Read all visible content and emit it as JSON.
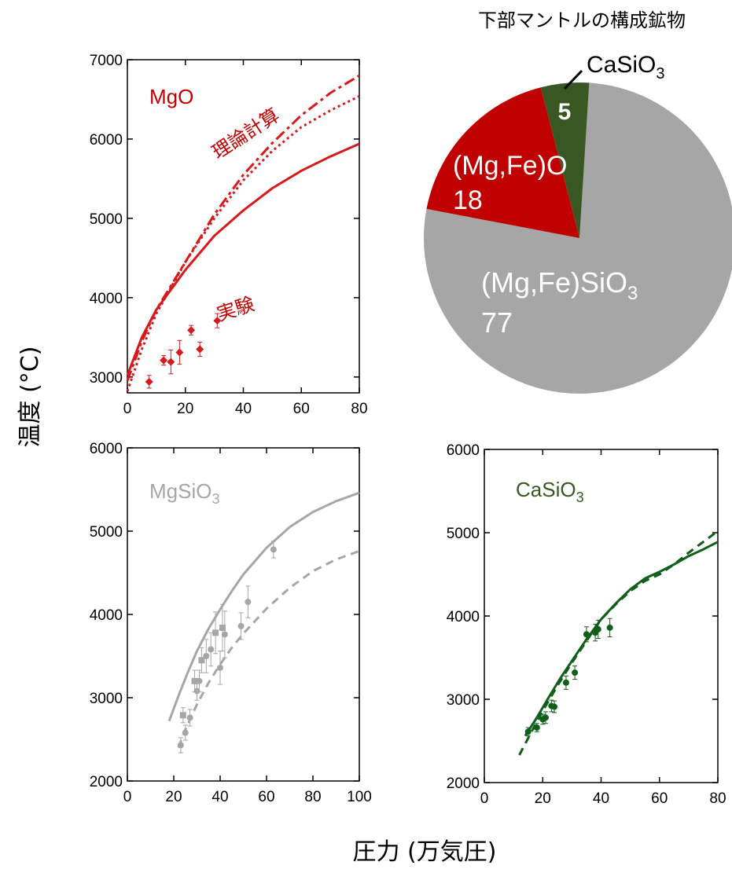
{
  "figure": {
    "ylabel": "温度 (°C)",
    "xlabel": "圧力 (万気圧)"
  },
  "chart_data": [
    {
      "type": "line",
      "title": "MgO",
      "title_color": "#c00000",
      "color": "#d7191c",
      "xlim": [
        0,
        80
      ],
      "ylim": [
        2800,
        7000
      ],
      "xticks": [
        0,
        20,
        40,
        60,
        80
      ],
      "yticks": [
        3000,
        4000,
        5000,
        6000,
        7000
      ],
      "annotations": [
        {
          "text": "理論計算",
          "x": 42,
          "y": 6000,
          "angle": -33,
          "color": "#c00000"
        },
        {
          "text": "実験",
          "x": 38,
          "y": 3780,
          "angle": -18,
          "color": "#c00000"
        }
      ],
      "series": [
        {
          "style": "solid",
          "x": [
            0,
            5,
            10,
            20,
            30,
            40,
            50,
            60,
            70,
            80
          ],
          "y": [
            3020,
            3500,
            3850,
            4350,
            4780,
            5100,
            5380,
            5600,
            5780,
            5940
          ]
        },
        {
          "style": "dotted",
          "x": [
            0,
            5,
            10,
            20,
            30,
            40,
            50,
            60,
            70,
            80
          ],
          "y": [
            2820,
            3350,
            3800,
            4450,
            5000,
            5480,
            5850,
            6150,
            6360,
            6540
          ]
        },
        {
          "style": "dashdot",
          "x": [
            0,
            5,
            10,
            20,
            30,
            40,
            50,
            60,
            70,
            80
          ],
          "y": [
            2950,
            3450,
            3850,
            4450,
            5050,
            5550,
            5950,
            6300,
            6580,
            6800
          ]
        }
      ],
      "points": [
        {
          "x": 7.5,
          "y": 2940,
          "err": 80
        },
        {
          "x": 12.5,
          "y": 3210,
          "err": 60
        },
        {
          "x": 15,
          "y": 3190,
          "err": 150
        },
        {
          "x": 18,
          "y": 3310,
          "err": 150
        },
        {
          "x": 22,
          "y": 3590,
          "err": 60
        },
        {
          "x": 25,
          "y": 3350,
          "err": 90
        },
        {
          "x": 31,
          "y": 3710,
          "err": 90
        }
      ]
    },
    {
      "type": "pie",
      "title": "下部マントルの構成鉱物",
      "slices": [
        {
          "label": "(Mg,Fe)SiO3",
          "value": 77,
          "color": "#a6a6a6"
        },
        {
          "label": "(Mg,Fe)O",
          "value": 18,
          "color": "#c00000"
        },
        {
          "label": "CaSiO3",
          "value": 5,
          "color": "#385723"
        }
      ]
    },
    {
      "type": "scatter",
      "title": "MgSiO3",
      "title_color": "#a6a6a6",
      "color": "#a6a6a6",
      "xlim": [
        0,
        100
      ],
      "ylim": [
        2000,
        6000
      ],
      "xticks": [
        0,
        20,
        40,
        60,
        80,
        100
      ],
      "yticks": [
        2000,
        3000,
        4000,
        5000,
        6000
      ],
      "series": [
        {
          "style": "solid",
          "x": [
            18,
            22,
            26,
            30,
            35,
            40,
            45,
            50,
            60,
            70,
            80,
            90,
            100
          ],
          "y": [
            2720,
            3020,
            3300,
            3560,
            3830,
            4060,
            4280,
            4480,
            4800,
            5050,
            5230,
            5360,
            5460
          ]
        },
        {
          "style": "dashed",
          "x": [
            22,
            25,
            30,
            35,
            40,
            45,
            50,
            60,
            70,
            80,
            90,
            100
          ],
          "y": [
            2400,
            2620,
            2920,
            3180,
            3400,
            3600,
            3770,
            4070,
            4320,
            4520,
            4660,
            4760
          ]
        }
      ],
      "points": [
        {
          "x": 23,
          "y": 2430,
          "err": 90,
          "marker": "circle"
        },
        {
          "x": 24,
          "y": 2790,
          "err": 90,
          "marker": "square"
        },
        {
          "x": 25,
          "y": 2580,
          "err": 90,
          "marker": "circle"
        },
        {
          "x": 27,
          "y": 2760,
          "err": 100,
          "marker": "circle"
        },
        {
          "x": 29,
          "y": 3200,
          "err": 130,
          "marker": "square"
        },
        {
          "x": 30,
          "y": 3080,
          "err": 110,
          "marker": "circle"
        },
        {
          "x": 31,
          "y": 3200,
          "err": 130,
          "marker": "circle"
        },
        {
          "x": 32,
          "y": 3450,
          "err": 150,
          "marker": "square"
        },
        {
          "x": 34,
          "y": 3500,
          "err": 200,
          "marker": "circle"
        },
        {
          "x": 36,
          "y": 3580,
          "err": 200,
          "marker": "circle"
        },
        {
          "x": 38,
          "y": 3780,
          "err": 250,
          "marker": "square"
        },
        {
          "x": 40,
          "y": 3360,
          "err": 200,
          "marker": "circle"
        },
        {
          "x": 41,
          "y": 3840,
          "err": 280,
          "marker": "square"
        },
        {
          "x": 42,
          "y": 3760,
          "err": 280,
          "marker": "circle"
        },
        {
          "x": 49,
          "y": 3860,
          "err": 160,
          "marker": "circle"
        },
        {
          "x": 52,
          "y": 4150,
          "err": 190,
          "marker": "circle"
        },
        {
          "x": 63,
          "y": 4780,
          "err": 100,
          "marker": "circle"
        }
      ]
    },
    {
      "type": "scatter",
      "title": "CaSiO3",
      "title_color": "#385723",
      "color": "#0f5f1a",
      "xlim": [
        0,
        80
      ],
      "ylim": [
        2000,
        6000
      ],
      "xticks": [
        0,
        20,
        40,
        60,
        80
      ],
      "yticks": [
        2000,
        3000,
        4000,
        5000,
        6000
      ],
      "series": [
        {
          "style": "solid",
          "x": [
            14,
            18,
            22,
            26,
            30,
            35,
            40,
            45,
            50,
            55,
            60,
            65,
            70,
            75,
            80
          ],
          "y": [
            2560,
            2780,
            3020,
            3250,
            3460,
            3720,
            3960,
            4150,
            4320,
            4450,
            4530,
            4620,
            4720,
            4800,
            4890
          ]
        },
        {
          "style": "dashed",
          "x": [
            12,
            16,
            20,
            25,
            30,
            35,
            40,
            45,
            50,
            55,
            60,
            65,
            70,
            75,
            80
          ],
          "y": [
            2330,
            2600,
            2860,
            3160,
            3440,
            3700,
            3960,
            4140,
            4300,
            4420,
            4500,
            4620,
            4760,
            4890,
            5020
          ]
        }
      ],
      "points": [
        {
          "x": 15,
          "y": 2610,
          "err": 50
        },
        {
          "x": 18,
          "y": 2660,
          "err": 50
        },
        {
          "x": 20,
          "y": 2760,
          "err": 60
        },
        {
          "x": 21,
          "y": 2780,
          "err": 70
        },
        {
          "x": 23,
          "y": 2920,
          "err": 70
        },
        {
          "x": 24,
          "y": 2910,
          "err": 70
        },
        {
          "x": 28,
          "y": 3200,
          "err": 80
        },
        {
          "x": 31,
          "y": 3320,
          "err": 80
        },
        {
          "x": 35,
          "y": 3780,
          "err": 90
        },
        {
          "x": 38,
          "y": 3800,
          "err": 100
        },
        {
          "x": 39,
          "y": 3840,
          "err": 110
        },
        {
          "x": 43,
          "y": 3860,
          "err": 110
        }
      ]
    }
  ]
}
